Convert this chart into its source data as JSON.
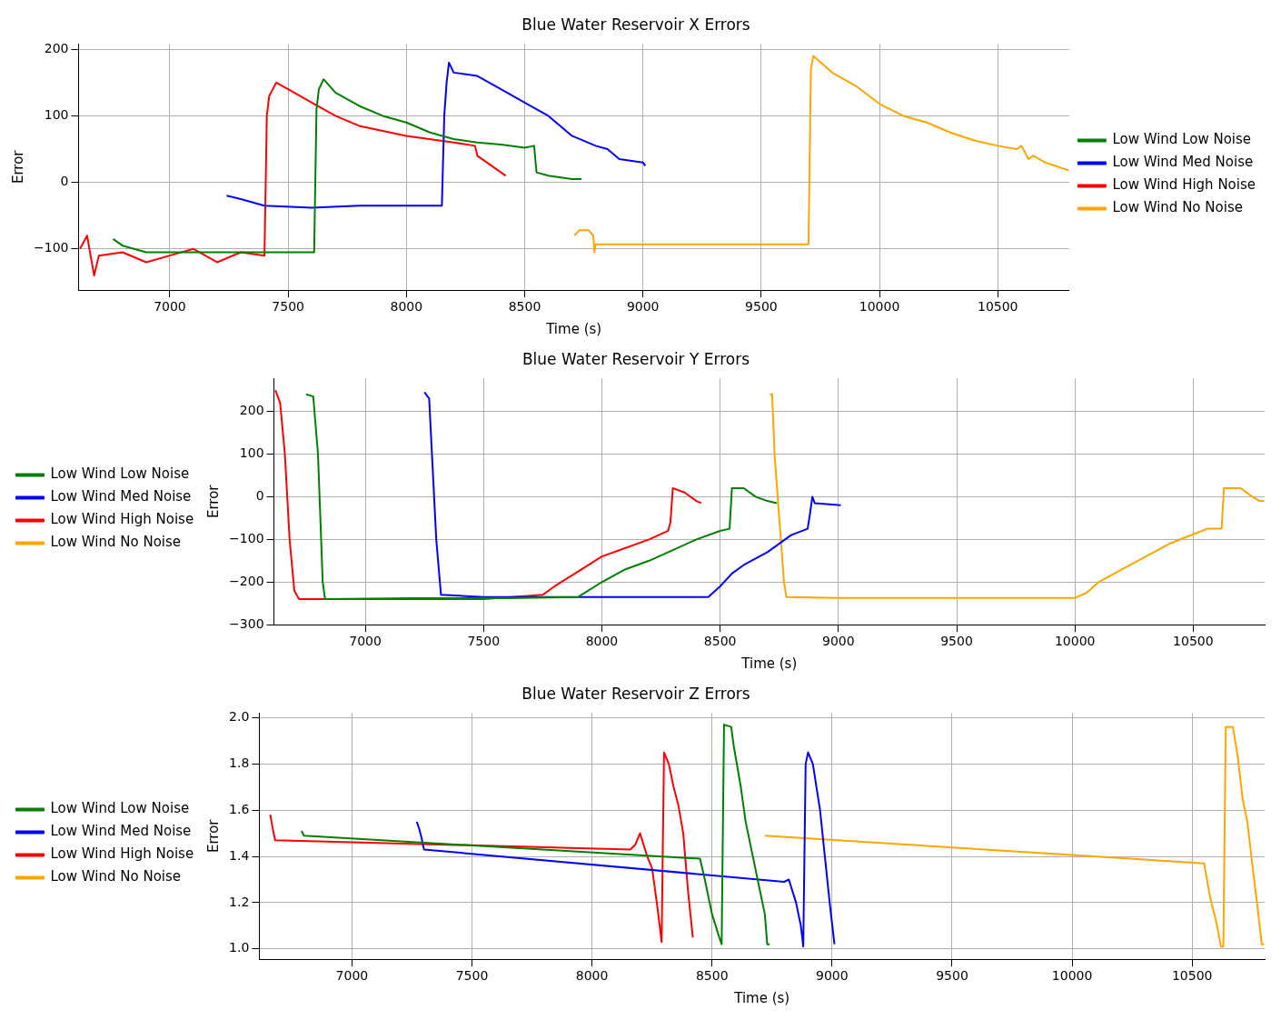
{
  "chart_data": [
    {
      "type": "line",
      "title": "Blue Water Reservoir X Errors",
      "xlabel": "Time (s)",
      "ylabel": "Error",
      "xlim": [
        6614,
        10802
      ],
      "xticks": [
        7000,
        7500,
        8000,
        8500,
        9000,
        9500,
        10000,
        10500
      ],
      "ylim": [
        -162,
        208
      ],
      "yticks": [
        -100,
        0,
        100,
        200
      ],
      "grid": true,
      "legend": "right",
      "series": [
        {
          "name": "Low Wind Low Noise",
          "color": "#008000",
          "x": [
            6760,
            6800,
            6900,
            7100,
            7300,
            7410,
            7500,
            7610,
            7620,
            7630,
            7650,
            7700,
            7800,
            7900,
            8000,
            8100,
            8200,
            8300,
            8400,
            8500,
            8540,
            8550,
            8600,
            8700,
            8740
          ],
          "values": [
            -85,
            -95,
            -105,
            -105,
            -105,
            -105,
            -105,
            -105,
            110,
            140,
            155,
            135,
            115,
            100,
            90,
            75,
            65,
            60,
            57,
            52,
            55,
            15,
            10,
            5,
            5
          ]
        },
        {
          "name": "Low Wind Med Noise",
          "color": "#0000ff",
          "x": [
            7240,
            7300,
            7400,
            7600,
            7800,
            8000,
            8150,
            8160,
            8170,
            8180,
            8200,
            8300,
            8400,
            8500,
            8600,
            8700,
            8800,
            8850,
            8900,
            9000,
            9010
          ],
          "values": [
            -20,
            -25,
            -35,
            -38,
            -35,
            -35,
            -35,
            100,
            150,
            180,
            165,
            160,
            140,
            120,
            100,
            70,
            55,
            50,
            35,
            30,
            25
          ]
        },
        {
          "name": "Low Wind High Noise",
          "color": "#ff0000",
          "x": [
            6620,
            6650,
            6680,
            6700,
            6800,
            6900,
            7000,
            7100,
            7200,
            7300,
            7400,
            7410,
            7420,
            7450,
            7500,
            7600,
            7700,
            7800,
            8000,
            8200,
            8290,
            8300,
            8400,
            8420
          ],
          "values": [
            -100,
            -80,
            -140,
            -110,
            -105,
            -120,
            -110,
            -100,
            -120,
            -105,
            -110,
            100,
            130,
            150,
            140,
            120,
            100,
            85,
            70,
            60,
            55,
            40,
            15,
            10
          ]
        },
        {
          "name": "Low Wind No Noise",
          "color": "#ffa500",
          "x": [
            8710,
            8730,
            8770,
            8790,
            8795,
            8800,
            9700,
            9710,
            9720,
            9800,
            9900,
            10000,
            10100,
            10200,
            10300,
            10400,
            10500,
            10580,
            10600,
            10630,
            10650,
            10700,
            10800
          ],
          "values": [
            -80,
            -72,
            -72,
            -80,
            -105,
            -93,
            -93,
            170,
            190,
            165,
            145,
            118,
            100,
            90,
            75,
            63,
            55,
            50,
            55,
            35,
            40,
            30,
            18
          ]
        }
      ]
    },
    {
      "type": "line",
      "title": "Blue Water Reservoir Y Errors",
      "xlabel": "Time (s)",
      "ylabel": "Error",
      "xlim": [
        6614,
        10802
      ],
      "xticks": [
        7000,
        7500,
        8000,
        8500,
        9000,
        9500,
        10000,
        10500
      ],
      "ylim": [
        -300,
        277
      ],
      "yticks": [
        -300,
        -200,
        -100,
        0,
        100,
        200
      ],
      "grid": true,
      "legend": "left",
      "series": [
        {
          "name": "Low Wind Low Noise",
          "color": "#008000",
          "x": [
            6750,
            6780,
            6800,
            6820,
            6830,
            7200,
            7600,
            7900,
            8000,
            8100,
            8200,
            8300,
            8400,
            8500,
            8540,
            8550,
            8600,
            8650,
            8700,
            8740
          ],
          "values": [
            240,
            235,
            100,
            -200,
            -240,
            -238,
            -238,
            -235,
            -200,
            -170,
            -150,
            -125,
            -100,
            -80,
            -75,
            20,
            20,
            0,
            -10,
            -15
          ]
        },
        {
          "name": "Low Wind Med Noise",
          "color": "#0000ff",
          "x": [
            7250,
            7270,
            7300,
            7320,
            7500,
            8000,
            8450,
            8500,
            8550,
            8600,
            8700,
            8800,
            8870,
            8880,
            8890,
            8900,
            9010
          ],
          "values": [
            245,
            230,
            -100,
            -230,
            -235,
            -235,
            -235,
            -210,
            -180,
            -160,
            -130,
            -90,
            -75,
            -40,
            0,
            -15,
            -20
          ]
        },
        {
          "name": "Low Wind High Noise",
          "color": "#ff0000",
          "x": [
            6620,
            6640,
            6660,
            6680,
            6700,
            6720,
            7000,
            7500,
            7750,
            7800,
            7900,
            8000,
            8100,
            8200,
            8280,
            8290,
            8300,
            8350,
            8400,
            8420
          ],
          "values": [
            250,
            220,
            100,
            -100,
            -220,
            -240,
            -240,
            -240,
            -230,
            -210,
            -175,
            -140,
            -120,
            -100,
            -80,
            -60,
            20,
            10,
            -10,
            -15
          ]
        },
        {
          "name": "Low Wind No Noise",
          "color": "#ffa500",
          "x": [
            8710,
            8720,
            8730,
            8750,
            8770,
            8780,
            9000,
            9700,
            10000,
            10050,
            10100,
            10200,
            10300,
            10400,
            10500,
            10560,
            10620,
            10630,
            10700,
            10750,
            10780,
            10800
          ],
          "values": [
            240,
            240,
            100,
            -50,
            -200,
            -235,
            -237,
            -237,
            -237,
            -225,
            -200,
            -170,
            -140,
            -110,
            -88,
            -75,
            -75,
            20,
            20,
            0,
            -10,
            -10
          ]
        }
      ]
    },
    {
      "type": "line",
      "title": "Blue Water Reservoir Z Errors",
      "xlabel": "Time (s)",
      "ylabel": "Error",
      "xlim": [
        6614,
        10802
      ],
      "xticks": [
        7000,
        7500,
        8000,
        8500,
        9000,
        9500,
        10000,
        10500
      ],
      "ylim": [
        0.955,
        2.02
      ],
      "yticks": [
        {
          "value": 1,
          "label": "1.0"
        },
        1.2,
        1.4,
        1.6,
        1.8,
        {
          "value": 2,
          "label": "2.0"
        }
      ],
      "grid": true,
      "legend": "bottom left",
      "series": [
        {
          "name": "Low Wind Low Noise",
          "color": "#008000",
          "x": [
            6790,
            6800,
            8450,
            8470,
            8500,
            8530,
            8540,
            8550,
            8580,
            8590,
            8620,
            8640,
            8660,
            8680,
            8700,
            8720,
            8730,
            8740
          ],
          "values": [
            1.51,
            1.49,
            1.39,
            1.3,
            1.15,
            1.05,
            1.02,
            1.97,
            1.96,
            1.88,
            1.7,
            1.55,
            1.45,
            1.35,
            1.25,
            1.15,
            1.02,
            1.02
          ]
        },
        {
          "name": "Low Wind Med Noise",
          "color": "#0000ff",
          "x": [
            7270,
            7280,
            7290,
            7300,
            8800,
            8820,
            8850,
            8870,
            8880,
            8890,
            8900,
            8920,
            8950,
            8970,
            8990,
            9010
          ],
          "values": [
            1.55,
            1.52,
            1.48,
            1.43,
            1.29,
            1.3,
            1.2,
            1.1,
            1.01,
            1.8,
            1.85,
            1.8,
            1.6,
            1.4,
            1.2,
            1.02
          ]
        },
        {
          "name": "Low Wind High Noise",
          "color": "#ff0000",
          "x": [
            6660,
            6670,
            6680,
            8160,
            8180,
            8200,
            8230,
            8250,
            8270,
            8290,
            8300,
            8320,
            8340,
            8360,
            8380,
            8400,
            8420
          ],
          "values": [
            1.58,
            1.52,
            1.47,
            1.43,
            1.45,
            1.5,
            1.4,
            1.35,
            1.2,
            1.03,
            1.85,
            1.8,
            1.7,
            1.62,
            1.5,
            1.25,
            1.05
          ]
        },
        {
          "name": "Low Wind No Noise",
          "color": "#ffa500",
          "x": [
            8720,
            10550,
            10570,
            10580,
            10600,
            10620,
            10630,
            10640,
            10670,
            10690,
            10710,
            10730,
            10750,
            10770,
            10790,
            10800
          ],
          "values": [
            1.49,
            1.37,
            1.25,
            1.2,
            1.12,
            1.01,
            1.01,
            1.96,
            1.96,
            1.83,
            1.65,
            1.55,
            1.37,
            1.2,
            1.02,
            1.02
          ]
        }
      ]
    }
  ]
}
